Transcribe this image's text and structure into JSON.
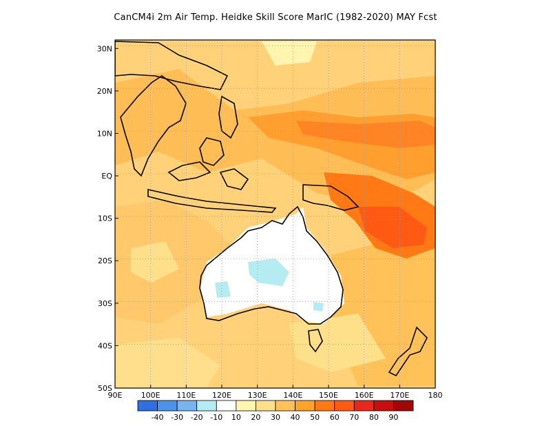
{
  "title": "CanCM4i  2m Air Temp. Heidke Skill Score MarIC (1982-2020) MAY Fcst",
  "map": {
    "lon_range": [
      90,
      180
    ],
    "lat_range": [
      -50,
      32
    ],
    "x_ticks": [
      "90E",
      "100E",
      "110E",
      "120E",
      "130E",
      "140E",
      "150E",
      "160E",
      "170E",
      "180"
    ],
    "y_ticks": [
      "30N",
      "20N",
      "10N",
      "EQ",
      "10S",
      "20S",
      "30S",
      "40S",
      "50S"
    ]
  },
  "colorbar": {
    "colors": [
      "#2f6fe0",
      "#4b92ea",
      "#7ab4f0",
      "#b4ecf2",
      "#ffffff",
      "#fff5b0",
      "#ffe08a",
      "#ffc259",
      "#ffa32b",
      "#ff7a14",
      "#ff5a14",
      "#e8281c",
      "#c80f0f",
      "#a00808"
    ],
    "labels": [
      "-40",
      "-30",
      "-20",
      "-10",
      "10",
      "20",
      "30",
      "40",
      "50",
      "60",
      "70",
      "80",
      "90"
    ]
  }
}
